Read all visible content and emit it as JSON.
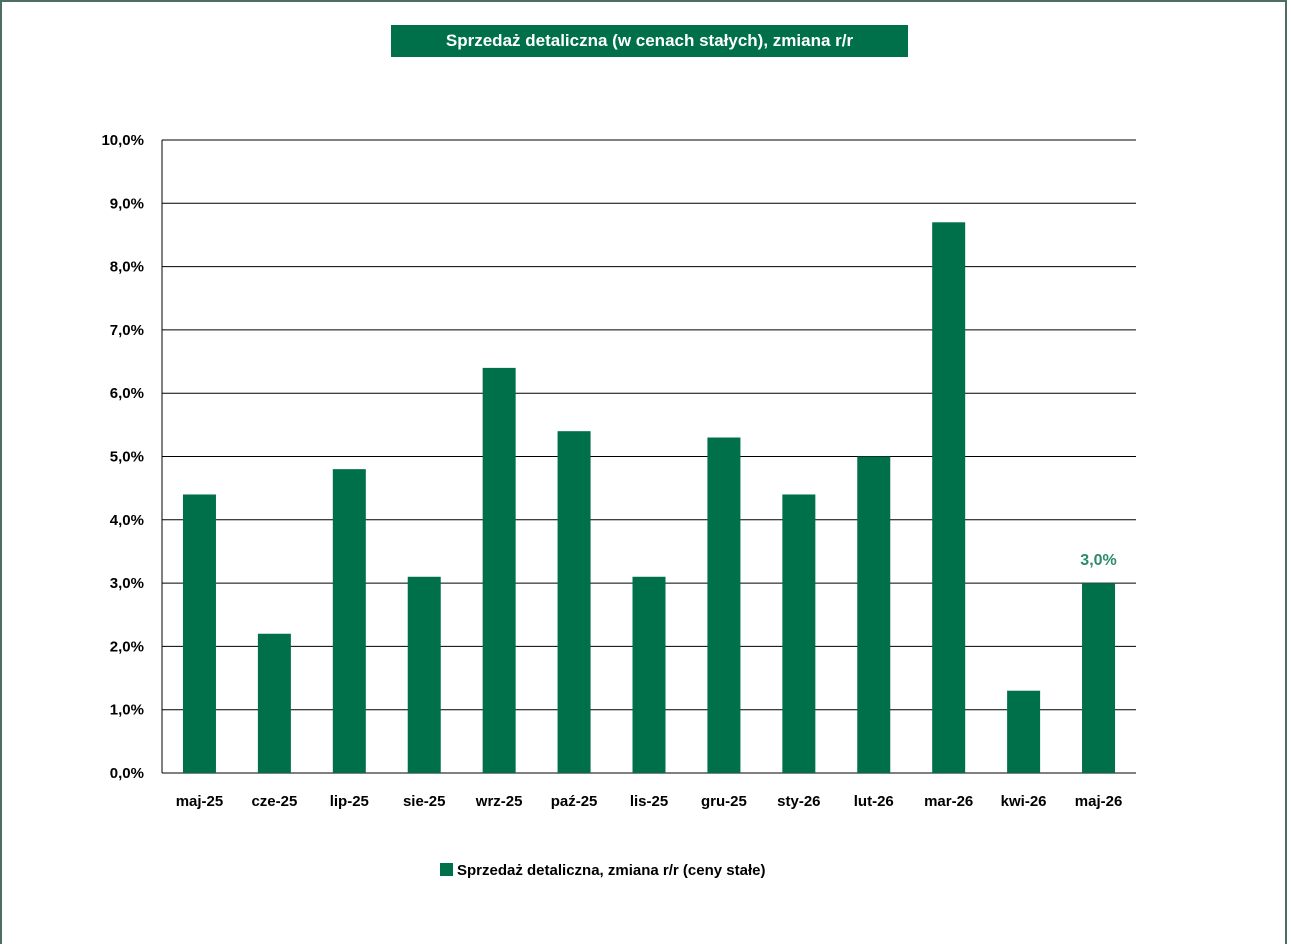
{
  "chart_data": {
    "type": "bar",
    "title": "Sprzedaż detaliczna (w cenach stałych), zmiana r/r",
    "xlabel": "",
    "ylabel": "",
    "categories": [
      "maj-25",
      "cze-25",
      "lip-25",
      "sie-25",
      "wrz-25",
      "paź-25",
      "lis-25",
      "gru-25",
      "sty-26",
      "lut-26",
      "mar-26",
      "kwi-26",
      "maj-26"
    ],
    "series": [
      {
        "name": "Sprzedaż detaliczna, zmiana r/r (ceny stałe)",
        "values": [
          4.4,
          2.2,
          4.8,
          3.1,
          6.4,
          5.4,
          3.1,
          5.3,
          4.4,
          5.0,
          8.7,
          1.3,
          3.0
        ],
        "color": "#00704a"
      }
    ],
    "ylim": [
      0,
      10
    ],
    "yticks": [
      "0,0%",
      "1,0%",
      "2,0%",
      "3,0%",
      "4,0%",
      "5,0%",
      "6,0%",
      "7,0%",
      "8,0%",
      "9,0%",
      "10,0%"
    ],
    "data_labels": [
      {
        "category": "maj-26",
        "text": "3,0%"
      }
    ],
    "grid": true,
    "legend_position": "bottom"
  },
  "colors": {
    "bar": "#00704a",
    "title_bg": "#00704a",
    "title_text": "#ffffff",
    "label_accent": "#2e8a6c",
    "frame": "#4e6e62"
  }
}
